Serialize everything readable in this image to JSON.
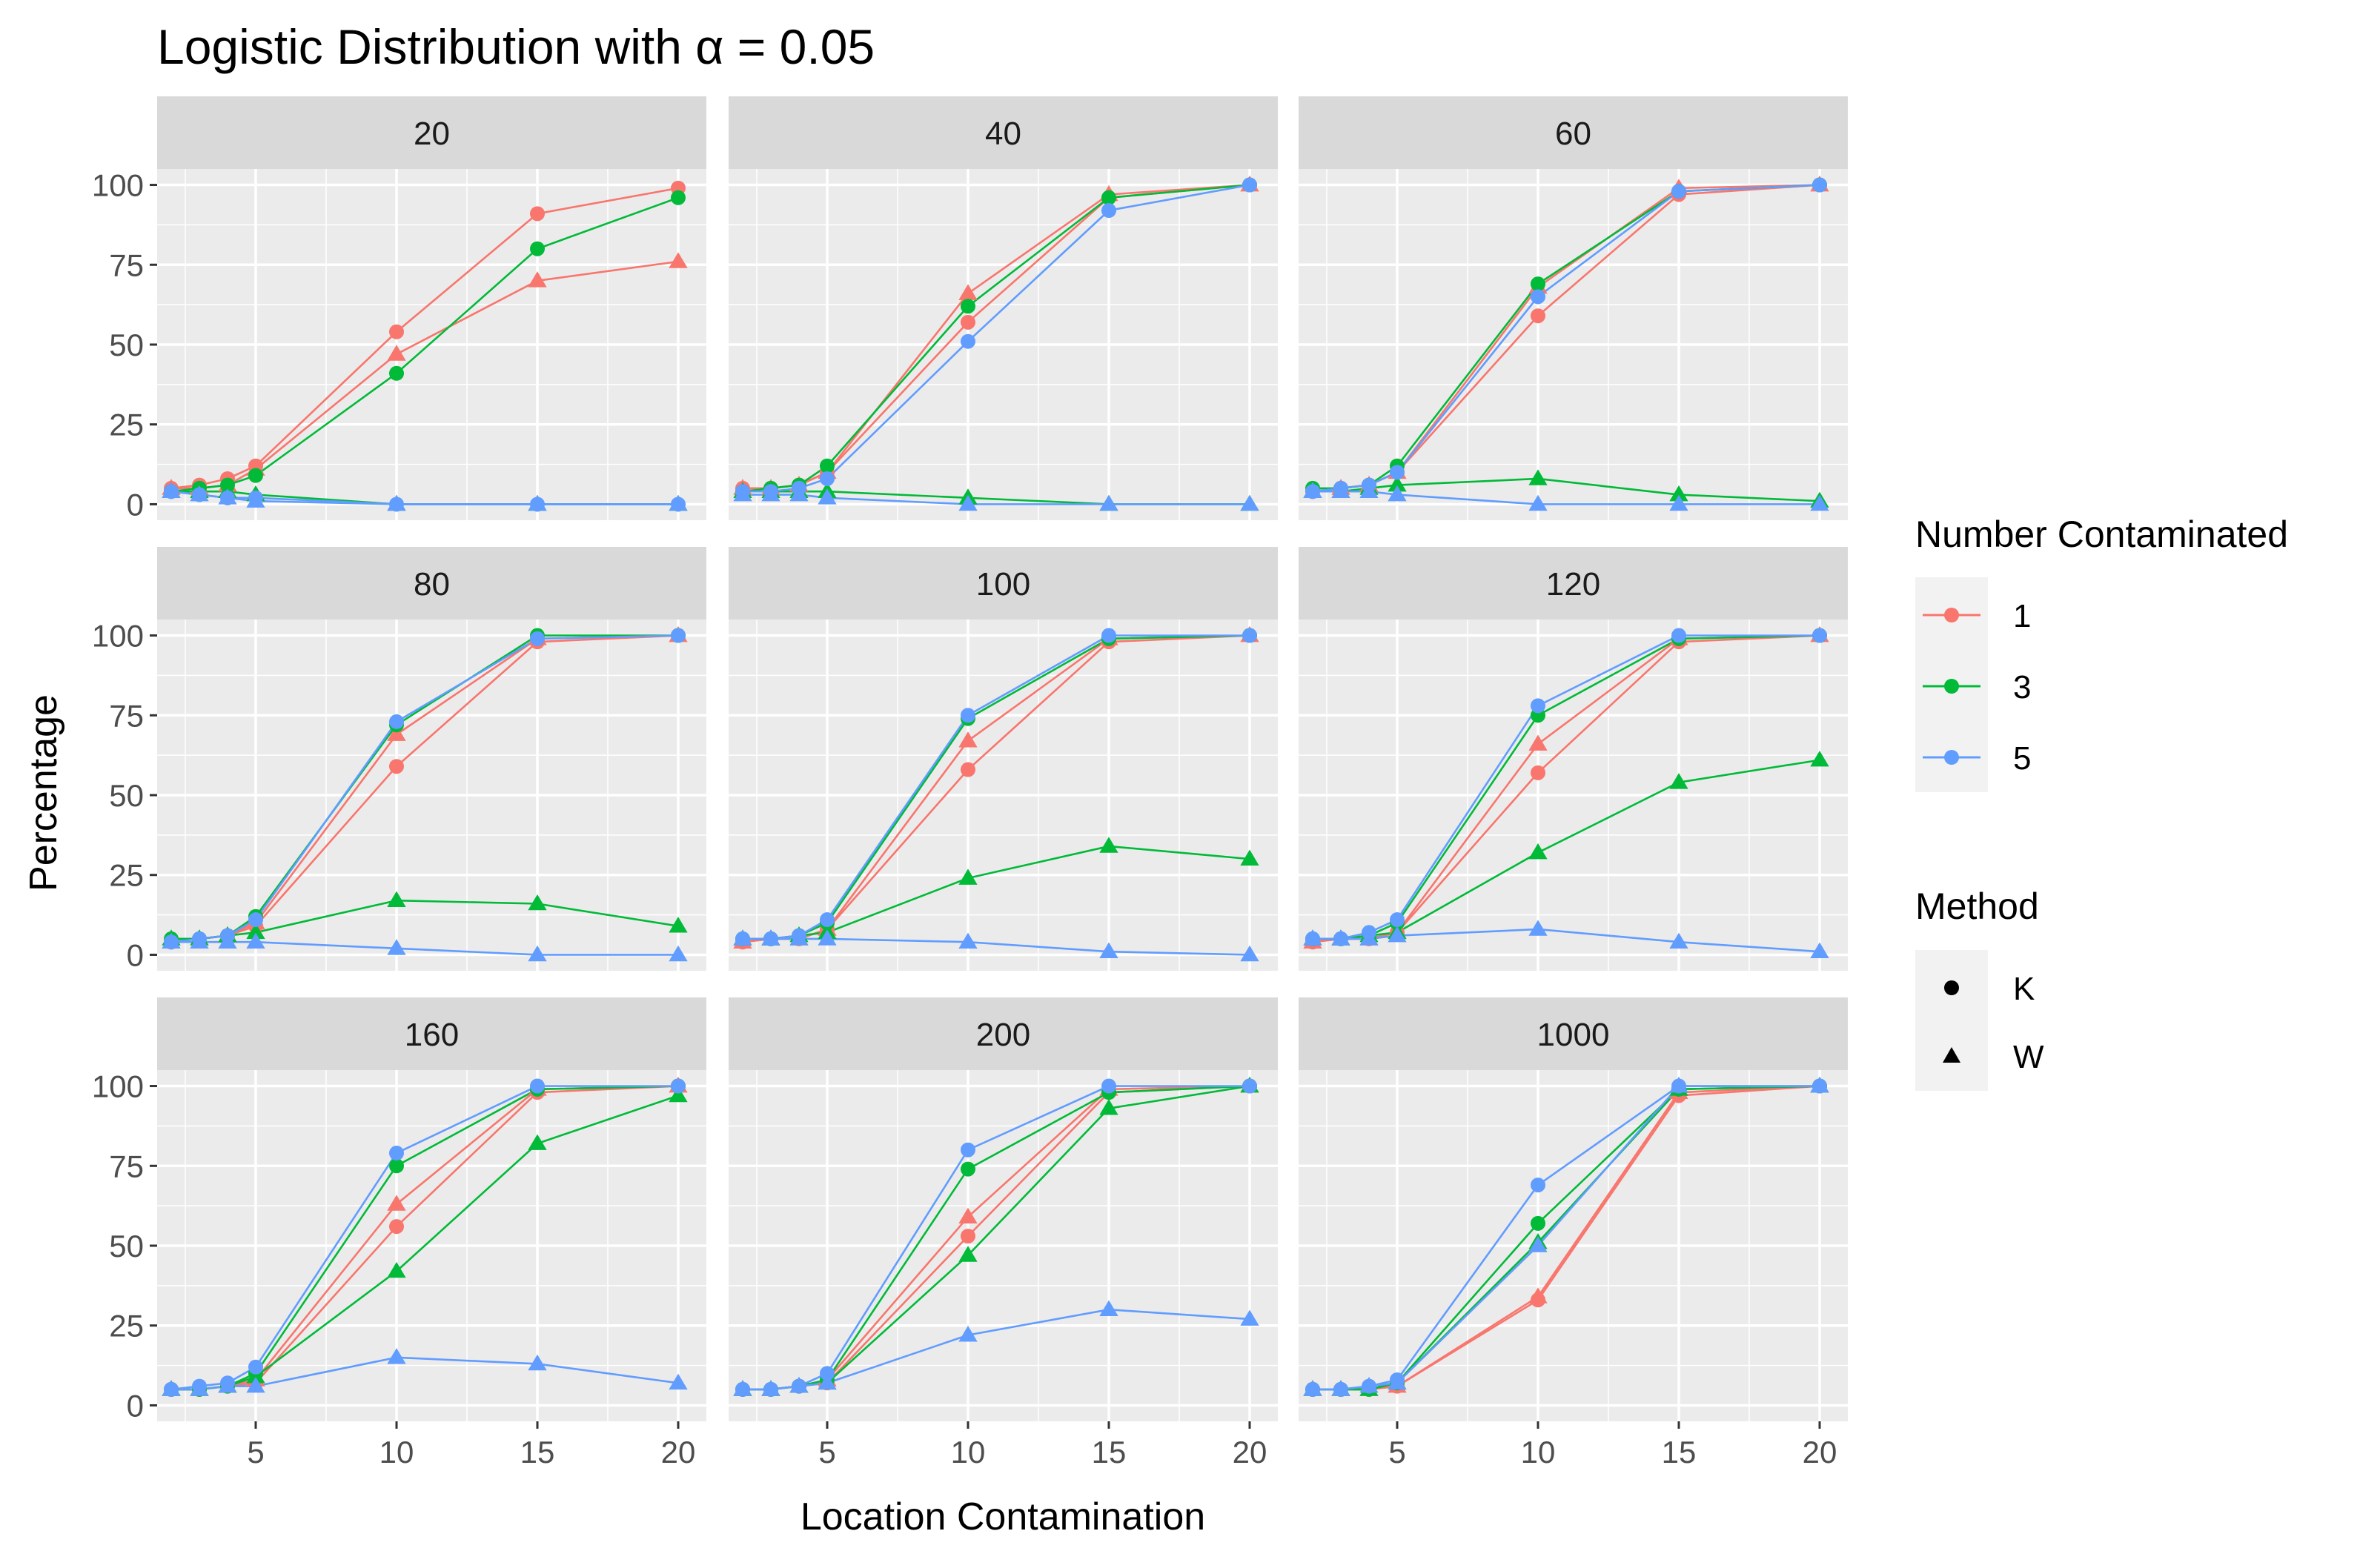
{
  "chart_data": {
    "type": "line",
    "title": "Logistic Distribution with α = 0.05",
    "xlabel": "Location Contamination",
    "ylabel": "Percentage",
    "x": [
      2,
      3,
      4,
      5,
      10,
      15,
      20
    ],
    "xlim": [
      1.5,
      21
    ],
    "ylim": [
      -5,
      105
    ],
    "x_ticks": [
      5,
      10,
      15,
      20
    ],
    "y_ticks": [
      0,
      25,
      50,
      75,
      100
    ],
    "legend": {
      "placement": "right",
      "color_title": "Number Contaminated",
      "shape_title": "Method",
      "colors": [
        {
          "label": "1",
          "color": "#F8766D"
        },
        {
          "label": "3",
          "color": "#00BA38"
        },
        {
          "label": "5",
          "color": "#619CFF"
        }
      ],
      "shapes": [
        {
          "label": "K",
          "shape": "circle"
        },
        {
          "label": "W",
          "shape": "triangle"
        }
      ]
    },
    "panels": [
      {
        "label": "20",
        "series": [
          {
            "n": "1",
            "m": "K",
            "values": [
              5,
              6,
              8,
              12,
              54,
              91,
              99
            ]
          },
          {
            "n": "1",
            "m": "W",
            "values": [
              5,
              5,
              6,
              11,
              47,
              70,
              76
            ]
          },
          {
            "n": "3",
            "m": "K",
            "values": [
              4,
              5,
              6,
              9,
              41,
              80,
              96
            ]
          },
          {
            "n": "3",
            "m": "W",
            "values": [
              4,
              4,
              4,
              3,
              0,
              0,
              0
            ]
          },
          {
            "n": "5",
            "m": "K",
            "values": [
              4,
              3,
              2,
              2,
              0,
              0,
              0
            ]
          },
          {
            "n": "5",
            "m": "W",
            "values": [
              4,
              3,
              2,
              1,
              0,
              0,
              0
            ]
          }
        ]
      },
      {
        "label": "40",
        "series": [
          {
            "n": "1",
            "m": "K",
            "values": [
              5,
              5,
              6,
              10,
              57,
              96,
              100
            ]
          },
          {
            "n": "1",
            "m": "W",
            "values": [
              5,
              5,
              6,
              10,
              66,
              97,
              100
            ]
          },
          {
            "n": "3",
            "m": "K",
            "values": [
              4,
              5,
              6,
              12,
              62,
              96,
              100
            ]
          },
          {
            "n": "3",
            "m": "W",
            "values": [
              4,
              4,
              4,
              4,
              2,
              0,
              0
            ]
          },
          {
            "n": "5",
            "m": "K",
            "values": [
              4,
              4,
              5,
              8,
              51,
              92,
              100
            ]
          },
          {
            "n": "5",
            "m": "W",
            "values": [
              3,
              3,
              3,
              2,
              0,
              0,
              0
            ]
          }
        ]
      },
      {
        "label": "60",
        "series": [
          {
            "n": "1",
            "m": "K",
            "values": [
              4,
              5,
              6,
              10,
              59,
              97,
              100
            ]
          },
          {
            "n": "1",
            "m": "W",
            "values": [
              4,
              5,
              6,
              10,
              68,
              99,
              100
            ]
          },
          {
            "n": "3",
            "m": "K",
            "values": [
              5,
              5,
              6,
              12,
              69,
              98,
              100
            ]
          },
          {
            "n": "3",
            "m": "W",
            "values": [
              4,
              4,
              5,
              6,
              8,
              3,
              1
            ]
          },
          {
            "n": "5",
            "m": "K",
            "values": [
              4,
              5,
              6,
              10,
              65,
              98,
              100
            ]
          },
          {
            "n": "5",
            "m": "W",
            "values": [
              4,
              4,
              4,
              3,
              0,
              0,
              0
            ]
          }
        ]
      },
      {
        "label": "80",
        "series": [
          {
            "n": "1",
            "m": "K",
            "values": [
              4,
              5,
              6,
              9,
              59,
              98,
              100
            ]
          },
          {
            "n": "1",
            "m": "W",
            "values": [
              4,
              5,
              6,
              10,
              69,
              99,
              100
            ]
          },
          {
            "n": "3",
            "m": "K",
            "values": [
              5,
              5,
              6,
              12,
              72,
              100,
              100
            ]
          },
          {
            "n": "3",
            "m": "W",
            "values": [
              5,
              5,
              6,
              7,
              17,
              16,
              9
            ]
          },
          {
            "n": "5",
            "m": "K",
            "values": [
              4,
              5,
              6,
              11,
              73,
              99,
              100
            ]
          },
          {
            "n": "5",
            "m": "W",
            "values": [
              4,
              4,
              4,
              4,
              2,
              0,
              0
            ]
          }
        ]
      },
      {
        "label": "100",
        "series": [
          {
            "n": "1",
            "m": "K",
            "values": [
              4,
              5,
              5,
              8,
              58,
              98,
              100
            ]
          },
          {
            "n": "1",
            "m": "W",
            "values": [
              4,
              5,
              5,
              8,
              67,
              99,
              100
            ]
          },
          {
            "n": "3",
            "m": "K",
            "values": [
              5,
              5,
              6,
              10,
              74,
              99,
              100
            ]
          },
          {
            "n": "3",
            "m": "W",
            "values": [
              5,
              5,
              6,
              7,
              24,
              34,
              30
            ]
          },
          {
            "n": "5",
            "m": "K",
            "values": [
              5,
              5,
              6,
              11,
              75,
              100,
              100
            ]
          },
          {
            "n": "5",
            "m": "W",
            "values": [
              5,
              5,
              5,
              5,
              4,
              1,
              0
            ]
          }
        ]
      },
      {
        "label": "120",
        "series": [
          {
            "n": "1",
            "m": "K",
            "values": [
              4,
              5,
              5,
              7,
              57,
              98,
              100
            ]
          },
          {
            "n": "1",
            "m": "W",
            "values": [
              4,
              5,
              5,
              7,
              66,
              99,
              100
            ]
          },
          {
            "n": "3",
            "m": "K",
            "values": [
              5,
              5,
              6,
              10,
              75,
              99,
              100
            ]
          },
          {
            "n": "3",
            "m": "W",
            "values": [
              5,
              5,
              6,
              7,
              32,
              54,
              61
            ]
          },
          {
            "n": "5",
            "m": "K",
            "values": [
              5,
              5,
              7,
              11,
              78,
              100,
              100
            ]
          },
          {
            "n": "5",
            "m": "W",
            "values": [
              5,
              5,
              5,
              6,
              8,
              4,
              1
            ]
          }
        ]
      },
      {
        "label": "160",
        "series": [
          {
            "n": "1",
            "m": "K",
            "values": [
              5,
              5,
              6,
              7,
              56,
              98,
              100
            ]
          },
          {
            "n": "1",
            "m": "W",
            "values": [
              5,
              5,
              6,
              8,
              63,
              99,
              100
            ]
          },
          {
            "n": "3",
            "m": "K",
            "values": [
              5,
              5,
              6,
              10,
              75,
              99,
              100
            ]
          },
          {
            "n": "3",
            "m": "W",
            "values": [
              5,
              5,
              6,
              9,
              42,
              82,
              97
            ]
          },
          {
            "n": "5",
            "m": "K",
            "values": [
              5,
              6,
              7,
              12,
              79,
              100,
              100
            ]
          },
          {
            "n": "5",
            "m": "W",
            "values": [
              5,
              5,
              6,
              6,
              15,
              13,
              7
            ]
          }
        ]
      },
      {
        "label": "200",
        "series": [
          {
            "n": "1",
            "m": "K",
            "values": [
              5,
              5,
              6,
              7,
              53,
              98,
              100
            ]
          },
          {
            "n": "1",
            "m": "W",
            "values": [
              5,
              5,
              6,
              8,
              59,
              99,
              100
            ]
          },
          {
            "n": "3",
            "m": "K",
            "values": [
              5,
              5,
              6,
              8,
              74,
              98,
              100
            ]
          },
          {
            "n": "3",
            "m": "W",
            "values": [
              5,
              5,
              6,
              7,
              47,
              93,
              100
            ]
          },
          {
            "n": "5",
            "m": "K",
            "values": [
              5,
              5,
              6,
              10,
              80,
              100,
              100
            ]
          },
          {
            "n": "5",
            "m": "W",
            "values": [
              5,
              5,
              6,
              7,
              22,
              30,
              27
            ]
          }
        ]
      },
      {
        "label": "1000",
        "series": [
          {
            "n": "1",
            "m": "K",
            "values": [
              5,
              5,
              5,
              6,
              33,
              97,
              100
            ]
          },
          {
            "n": "1",
            "m": "W",
            "values": [
              5,
              5,
              5,
              6,
              34,
              98,
              100
            ]
          },
          {
            "n": "3",
            "m": "K",
            "values": [
              5,
              5,
              5,
              7,
              57,
              99,
              100
            ]
          },
          {
            "n": "3",
            "m": "W",
            "values": [
              5,
              5,
              5,
              7,
              51,
              99,
              100
            ]
          },
          {
            "n": "5",
            "m": "K",
            "values": [
              5,
              5,
              6,
              8,
              69,
              100,
              100
            ]
          },
          {
            "n": "5",
            "m": "W",
            "values": [
              5,
              5,
              6,
              7,
              50,
              100,
              100
            ]
          }
        ]
      }
    ]
  }
}
